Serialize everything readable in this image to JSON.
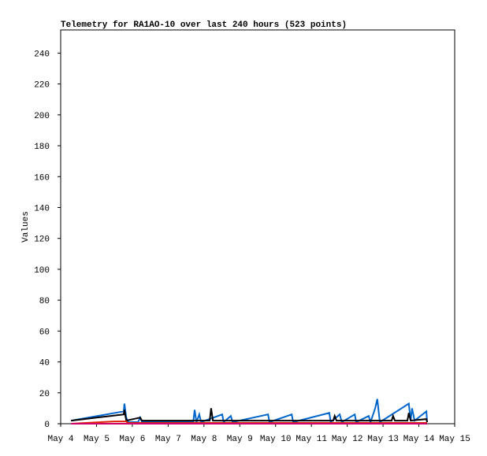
{
  "chart_data": {
    "type": "line",
    "title": "Telemetry for RA1AO-10 over last 240 hours (523 points)",
    "ylabel": "Values",
    "xlim": [
      4,
      15
    ],
    "xticks": [
      {
        "value": 4,
        "label": "May 4"
      },
      {
        "value": 5,
        "label": "May 5"
      },
      {
        "value": 6,
        "label": "May 6"
      },
      {
        "value": 7,
        "label": "May 7"
      },
      {
        "value": 8,
        "label": "May 8"
      },
      {
        "value": 9,
        "label": "May 9"
      },
      {
        "value": 10,
        "label": "May 10"
      },
      {
        "value": 11,
        "label": "May 11"
      },
      {
        "value": 12,
        "label": "May 12"
      },
      {
        "value": 13,
        "label": "May 13"
      },
      {
        "value": 14,
        "label": "May 14"
      },
      {
        "value": 15,
        "label": "May 15"
      }
    ],
    "ylim": [
      0,
      255
    ],
    "yticks": [
      0,
      20,
      40,
      60,
      80,
      100,
      120,
      140,
      160,
      180,
      200,
      220,
      240
    ],
    "series": [
      {
        "color": "#0066cc",
        "x": [
          4.29,
          5.76,
          5.78,
          5.83,
          5.89,
          6.16,
          6.22,
          6.27,
          7.7,
          7.74,
          7.79,
          7.87,
          7.92,
          8.51,
          8.55,
          8.75,
          8.8,
          9.79,
          9.83,
          10.45,
          10.49,
          11.5,
          11.54,
          11.79,
          11.85,
          12.21,
          12.25,
          12.6,
          12.65,
          12.78,
          12.84,
          12.91,
          13.72,
          13.77,
          13.81,
          13.88,
          14.21,
          14.23
        ],
        "values": [
          2,
          8,
          13,
          4,
          1,
          1,
          4,
          1,
          1,
          9,
          1,
          6,
          1,
          6,
          1,
          5,
          1,
          6,
          1,
          6,
          1,
          7,
          1,
          6,
          1,
          6,
          1,
          5,
          1,
          10,
          16,
          1,
          13,
          2,
          10,
          2,
          8,
          1
        ]
      },
      {
        "color": "#000000",
        "x": [
          4.29,
          5.76,
          5.78,
          5.83,
          6.22,
          6.27,
          8.16,
          8.2,
          8.25,
          11.61,
          11.65,
          11.7,
          13.24,
          13.28,
          13.33,
          13.68,
          13.72,
          13.77,
          14.21,
          14.23
        ],
        "values": [
          2,
          6,
          9,
          2,
          4,
          2,
          2,
          10,
          2,
          2,
          5,
          2,
          2,
          5,
          2,
          2,
          7,
          2,
          3,
          1
        ]
      },
      {
        "color": "#dd2200",
        "x": [
          4.29,
          5.5,
          5.83,
          5.87,
          14.23
        ],
        "values": [
          0,
          1.5,
          1.5,
          0.5,
          0.5
        ]
      },
      {
        "color": "#cc0066",
        "x": [
          4.29,
          14.23
        ],
        "values": [
          0,
          0
        ]
      }
    ]
  }
}
